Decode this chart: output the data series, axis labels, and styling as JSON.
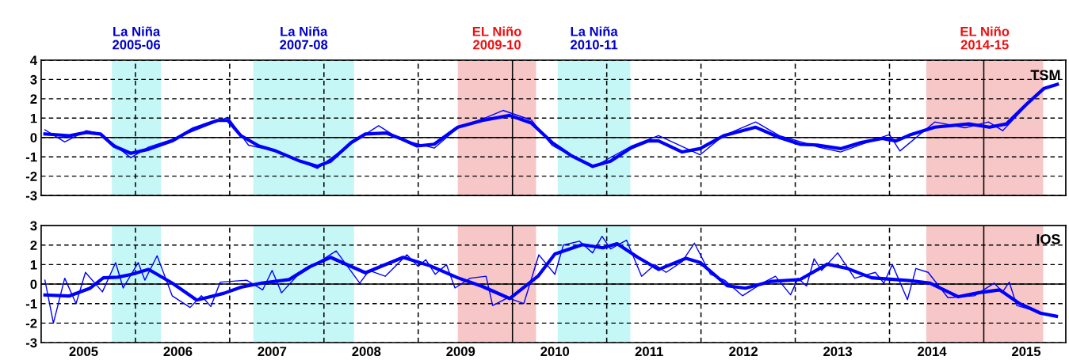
{
  "chart_data": [
    {
      "type": "line",
      "xlim": [
        2004.55,
        2015.42
      ],
      "ylim": [
        -3,
        4
      ],
      "yticks": [
        -3,
        -2,
        -1,
        0,
        1,
        2,
        3,
        4
      ],
      "grid": "y",
      "tick_labels": "y",
      "marker": "none",
      "annotations": [
        "TSM"
      ],
      "series": [
        {
          "color": "#0000ff",
          "x": [
            2004.59,
            2004.85,
            2005.03,
            2005.18,
            2005.32,
            2005.5,
            2005.69,
            2005.94,
            2006.16,
            2006.42,
            2006.53,
            2006.67,
            2006.86,
            2007.04,
            2007.3,
            2007.48,
            2007.62,
            2007.84,
            2007.99,
            2008.21,
            2008.36,
            2008.54,
            2008.72,
            2008.97,
            2009.23,
            2009.52,
            2009.75,
            2009.97,
            2010.18,
            2010.4,
            2010.59,
            2010.81,
            2010.99,
            2011.1,
            2011.35,
            2011.54,
            2011.79,
            2012.13,
            2012.38,
            2012.6,
            2012.78,
            2013.03,
            2013.25,
            2013.47,
            2013.62,
            2013.76,
            2014.03,
            2014.39,
            2014.61,
            2014.79,
            2015.01,
            2015.19,
            2015.33
          ],
          "values": [
            0.18,
            0.09,
            0.26,
            0.18,
            -0.44,
            -0.82,
            -0.61,
            -0.18,
            0.44,
            0.88,
            0.88,
            0.09,
            -0.44,
            -0.7,
            -1.23,
            -1.49,
            -1.23,
            -0.26,
            0.18,
            0.23,
            -0.05,
            -0.44,
            -0.35,
            0.53,
            0.88,
            1.14,
            0.75,
            -0.26,
            -0.96,
            -1.49,
            -1.23,
            -0.53,
            -0.18,
            -0.18,
            -0.75,
            -0.58,
            0.09,
            0.53,
            0.0,
            -0.35,
            -0.39,
            -0.58,
            -0.26,
            -0.05,
            -0.18,
            0.12,
            0.53,
            0.7,
            0.53,
            0.7,
            1.75,
            2.54,
            2.75
          ]
        },
        {
          "color": "#0000ff",
          "x": [
            2004.59,
            2004.8,
            2005.03,
            2005.18,
            2005.5,
            2005.69,
            2005.94,
            2006.2,
            2006.53,
            2006.75,
            2007.04,
            2007.48,
            2007.84,
            2008.13,
            2008.36,
            2008.72,
            2008.97,
            2009.23,
            2009.45,
            2009.75,
            2009.97,
            2010.4,
            2010.81,
            2011.1,
            2011.54,
            2011.79,
            2012.13,
            2012.38,
            2012.8,
            2013.03,
            2013.4,
            2013.55,
            2013.66,
            2014.03,
            2014.35,
            2014.6,
            2014.75,
            2015.01,
            2015.19,
            2015.33
          ],
          "values": [
            0.4,
            -0.23,
            0.35,
            0.2,
            -1.05,
            -0.5,
            -0.1,
            0.4,
            1.05,
            -0.4,
            -0.7,
            -1.6,
            -0.3,
            0.61,
            -0.1,
            -0.55,
            0.5,
            0.95,
            1.4,
            0.9,
            -0.4,
            -1.55,
            -0.45,
            0.1,
            -0.9,
            0.1,
            0.8,
            0.1,
            -0.5,
            -0.75,
            -0.1,
            0.15,
            -0.7,
            0.8,
            0.5,
            0.8,
            0.35,
            1.7,
            2.5,
            2.75
          ]
        }
      ],
      "ref_lines": [
        {
          "axis": "y",
          "value": 0,
          "line_style": "solid"
        },
        {
          "axis": "x",
          "value": 2005.55,
          "line_style": "dashed"
        },
        {
          "axis": "x",
          "value": 2006.55,
          "line_style": "dashed"
        },
        {
          "axis": "x",
          "value": 2007.55,
          "line_style": "dashed"
        },
        {
          "axis": "x",
          "value": 2008.55,
          "line_style": "dashed"
        },
        {
          "axis": "x",
          "value": 2009.55,
          "line_style": "solid"
        },
        {
          "axis": "x",
          "value": 2010.55,
          "line_style": "dashed"
        },
        {
          "axis": "x",
          "value": 2011.55,
          "line_style": "dashed"
        },
        {
          "axis": "x",
          "value": 2012.55,
          "line_style": "dashed"
        },
        {
          "axis": "x",
          "value": 2013.55,
          "line_style": "dashed"
        },
        {
          "axis": "x",
          "value": 2014.55,
          "line_style": "solid"
        }
      ],
      "bands": [
        {
          "axis": "x",
          "from": 2005.3,
          "to": 2005.82,
          "label": "La Niña\n2005-06",
          "color": "#c6f7f7"
        },
        {
          "axis": "x",
          "from": 2006.8,
          "to": 2007.87,
          "label": "La Niña\n2007-08",
          "color": "#c6f7f7"
        },
        {
          "axis": "x",
          "from": 2008.97,
          "to": 2009.8,
          "label": "EL Niño\n2009-10",
          "color": "#f7c6c6"
        },
        {
          "axis": "x",
          "from": 2010.03,
          "to": 2010.8,
          "label": "La Niña\n2010-11",
          "color": "#c6f7f7"
        },
        {
          "axis": "x",
          "from": 2013.94,
          "to": 2015.18,
          "label": "EL Niño\n2014-15",
          "color": "#f7c6c6"
        }
      ]
    },
    {
      "type": "line",
      "xlim": [
        2004.55,
        2015.42
      ],
      "ylim": [
        -3,
        3
      ],
      "yticks": [
        -3,
        -2,
        -1,
        0,
        1,
        2,
        3
      ],
      "xticks": [
        {
          "value": 2005,
          "label": "2005"
        },
        {
          "value": 2006,
          "label": "2006"
        },
        {
          "value": 2007,
          "label": "2007"
        },
        {
          "value": 2008,
          "label": "2008"
        },
        {
          "value": 2009,
          "label": "2009"
        },
        {
          "value": 2010,
          "label": "2010"
        },
        {
          "value": 2011,
          "label": "2011"
        },
        {
          "value": 2012,
          "label": "2012"
        },
        {
          "value": 2013,
          "label": "2013"
        },
        {
          "value": 2014,
          "label": "2014"
        },
        {
          "value": 2015,
          "label": "2015"
        }
      ],
      "grid": "y",
      "marker": "none",
      "annotations": [
        "IOS"
      ],
      "series": [
        {
          "color": "#0000ff",
          "x": [
            2004.59,
            2004.85,
            2005.07,
            2005.21,
            2005.36,
            2005.5,
            2005.69,
            2005.94,
            2006.2,
            2006.49,
            2006.67,
            2006.89,
            2007.18,
            2007.4,
            2007.62,
            2007.99,
            2008.39,
            2008.68,
            2008.97,
            2009.23,
            2009.52,
            2009.82,
            2010.0,
            2010.29,
            2010.51,
            2010.66,
            2010.88,
            2011.1,
            2011.39,
            2011.54,
            2011.83,
            2012.02,
            2012.3,
            2012.6,
            2012.89,
            2013.11,
            2013.36,
            2013.76,
            2013.98,
            2014.28,
            2014.5,
            2014.72,
            2014.93,
            2015.15,
            2015.32
          ],
          "values": [
            -0.56,
            -0.61,
            -0.21,
            0.32,
            0.35,
            0.49,
            0.75,
            0.05,
            -0.82,
            -0.47,
            -0.16,
            0.05,
            0.23,
            0.89,
            1.37,
            0.58,
            1.37,
            0.93,
            0.32,
            -0.12,
            -0.74,
            0.4,
            1.54,
            2.02,
            1.86,
            2.07,
            1.37,
            0.75,
            1.32,
            1.11,
            -0.09,
            -0.21,
            0.14,
            0.23,
            1.02,
            0.79,
            0.32,
            0.18,
            0.05,
            -0.65,
            -0.44,
            -0.3,
            -1.0,
            -1.49,
            -1.65
          ]
        },
        {
          "color": "#0000ff",
          "x": [
            2004.59,
            2004.68,
            2004.8,
            2004.92,
            2005.02,
            2005.2,
            2005.34,
            2005.42,
            2005.58,
            2005.65,
            2005.78,
            2005.94,
            2006.13,
            2006.25,
            2006.35,
            2006.45,
            2006.73,
            2006.9,
            2007.0,
            2007.1,
            2007.26,
            2007.68,
            2007.93,
            2008.03,
            2008.2,
            2008.43,
            2008.55,
            2008.63,
            2008.73,
            2008.85,
            2008.94,
            2009.1,
            2009.27,
            2009.34,
            2009.5,
            2009.67,
            2009.83,
            2010.0,
            2010.09,
            2010.26,
            2010.4,
            2010.5,
            2010.59,
            2010.76,
            2010.92,
            2011.06,
            2011.18,
            2011.35,
            2011.48,
            2011.65,
            2011.8,
            2011.99,
            2012.2,
            2012.34,
            2012.5,
            2012.58,
            2012.67,
            2012.75,
            2012.83,
            2013.0,
            2013.18,
            2013.4,
            2013.49,
            2013.58,
            2013.74,
            2013.83,
            2013.96,
            2014.17,
            2014.45,
            2014.66,
            2014.75,
            2014.82,
            2014.9,
            2015.15,
            2015.32
          ],
          "values": [
            0.2,
            -2.0,
            0.3,
            -1.0,
            0.6,
            -0.4,
            1.1,
            -0.2,
            1.1,
            0.2,
            1.45,
            -0.6,
            -1.2,
            -0.6,
            -1.15,
            0.1,
            0.2,
            -0.3,
            0.7,
            -0.45,
            0.4,
            1.7,
            0.05,
            0.7,
            0.4,
            1.5,
            0.9,
            1.25,
            0.5,
            1.0,
            -0.2,
            0.3,
            0.4,
            -1.1,
            -0.7,
            -1.0,
            1.5,
            0.5,
            2.0,
            2.2,
            1.6,
            2.45,
            1.8,
            2.25,
            0.4,
            1.0,
            0.6,
            1.15,
            2.1,
            0.5,
            0.2,
            -0.6,
            0.05,
            0.4,
            -0.55,
            0.3,
            -0.1,
            1.3,
            0.7,
            1.6,
            0.3,
            0.6,
            0.05,
            1.0,
            -0.8,
            0.8,
            0.6,
            -0.7,
            -0.6,
            0.05,
            -0.4,
            0.1,
            -1.1,
            -1.45,
            -1.65
          ]
        }
      ],
      "ref_lines": [
        {
          "axis": "y",
          "value": 0,
          "line_style": "solid"
        },
        {
          "axis": "x",
          "value": 2005.55,
          "line_style": "dashed"
        },
        {
          "axis": "x",
          "value": 2006.55,
          "line_style": "dashed"
        },
        {
          "axis": "x",
          "value": 2007.55,
          "line_style": "dashed"
        },
        {
          "axis": "x",
          "value": 2008.55,
          "line_style": "dashed"
        },
        {
          "axis": "x",
          "value": 2009.55,
          "line_style": "solid"
        },
        {
          "axis": "x",
          "value": 2010.55,
          "line_style": "dashed"
        },
        {
          "axis": "x",
          "value": 2011.55,
          "line_style": "dashed"
        },
        {
          "axis": "x",
          "value": 2012.55,
          "line_style": "dashed"
        },
        {
          "axis": "x",
          "value": 2013.55,
          "line_style": "dashed"
        },
        {
          "axis": "x",
          "value": 2014.55,
          "line_style": "solid"
        }
      ],
      "bands": [
        {
          "axis": "x",
          "from": 2005.3,
          "to": 2005.82,
          "color": "#c6f7f7"
        },
        {
          "axis": "x",
          "from": 2006.8,
          "to": 2007.87,
          "color": "#c6f7f7"
        },
        {
          "axis": "x",
          "from": 2008.97,
          "to": 2009.8,
          "color": "#f7c6c6"
        },
        {
          "axis": "x",
          "from": 2010.03,
          "to": 2010.8,
          "color": "#c6f7f7"
        },
        {
          "axis": "x",
          "from": 2013.94,
          "to": 2015.18,
          "color": "#f7c6c6"
        }
      ]
    }
  ]
}
